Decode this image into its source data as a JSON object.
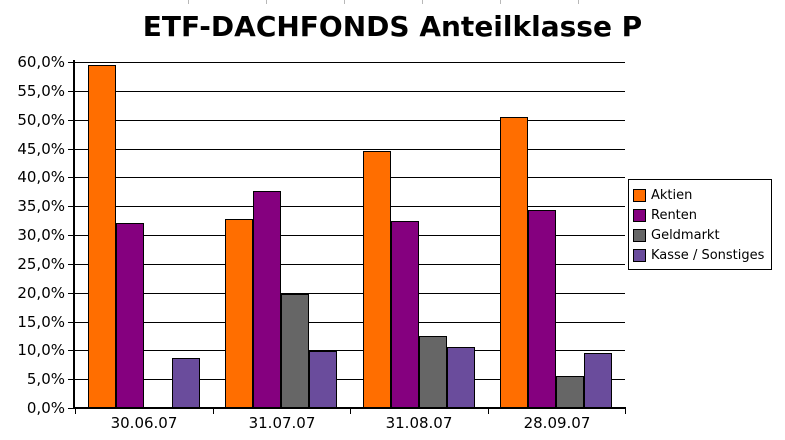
{
  "page": {
    "background": "#ffffff",
    "text_color": "#000000"
  },
  "chart_data": {
    "type": "bar",
    "title": "ETF-DACHFONDS Anteilklasse P",
    "categories": [
      "30.06.07",
      "31.07.07",
      "31.08.07",
      "28.09.07"
    ],
    "series": [
      {
        "name": "Aktien",
        "color": "#FF6E00",
        "values": [
          59.4,
          32.7,
          44.5,
          50.5
        ]
      },
      {
        "name": "Renten",
        "color": "#85007F",
        "values": [
          32.0,
          37.7,
          32.4,
          34.3
        ]
      },
      {
        "name": "Geldmarkt",
        "color": "#666666",
        "values": [
          0,
          19.7,
          12.5,
          5.6
        ]
      },
      {
        "name": "Kasse / Sonstiges",
        "color": "#6A4C9C",
        "values": [
          8.6,
          9.9,
          10.5,
          9.5
        ]
      }
    ],
    "xlabel": "",
    "ylabel": "",
    "ylim": [
      0,
      60
    ],
    "ytick_step": 5,
    "ytick_labels": [
      "0,0%",
      "5,0%",
      "10,0%",
      "15,0%",
      "20,0%",
      "25,0%",
      "30,0%",
      "35,0%",
      "40,0%",
      "45,0%",
      "50,0%",
      "55,0%",
      "60,0%"
    ],
    "grid": true,
    "gridline_color": "#000000",
    "bar_outline_color": "#000000",
    "legend_position": "right",
    "legend": [
      "Aktien",
      "Renten",
      "Geldmarkt",
      "Kasse / Sonstiges"
    ]
  }
}
